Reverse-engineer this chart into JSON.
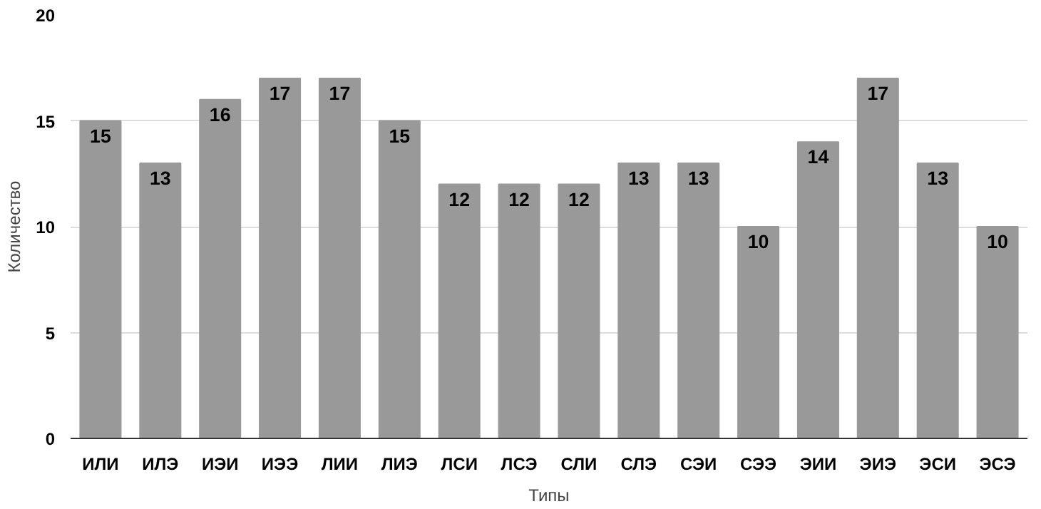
{
  "chart_data": {
    "type": "bar",
    "xlabel": "Типы",
    "ylabel": "Количество",
    "categories": [
      "ИЛИ",
      "ИЛЭ",
      "ИЭИ",
      "ИЭЭ",
      "ЛИИ",
      "ЛИЭ",
      "ЛСИ",
      "ЛСЭ",
      "СЛИ",
      "СЛЭ",
      "СЭИ",
      "СЭЭ",
      "ЭИИ",
      "ЭИЭ",
      "ЭСИ",
      "ЭСЭ"
    ],
    "values": [
      15,
      13,
      16,
      17,
      17,
      15,
      12,
      12,
      12,
      13,
      13,
      10,
      14,
      17,
      13,
      10
    ],
    "color": "#999999",
    "ylim": [
      0,
      20
    ],
    "yticks": [
      0,
      5,
      10,
      15,
      20
    ],
    "grid": "y",
    "data_labels": true
  }
}
